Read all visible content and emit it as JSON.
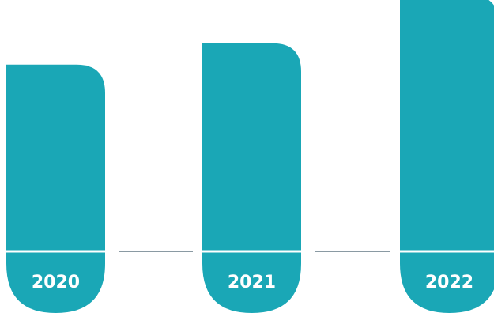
{
  "colors": {
    "bar": "#1aa7b6",
    "divider": "#ffffff",
    "connector": "#8a9aa3",
    "label": "#ffffff"
  },
  "chart_data": {
    "type": "bar",
    "categories": [
      "2020",
      "2021",
      "2022"
    ],
    "values": [
      3.5,
      3.9,
      4.8
    ],
    "title": "",
    "xlabel": "",
    "ylabel": "",
    "ylim": [
      0,
      4.8
    ],
    "grid": false,
    "legend": "none"
  }
}
